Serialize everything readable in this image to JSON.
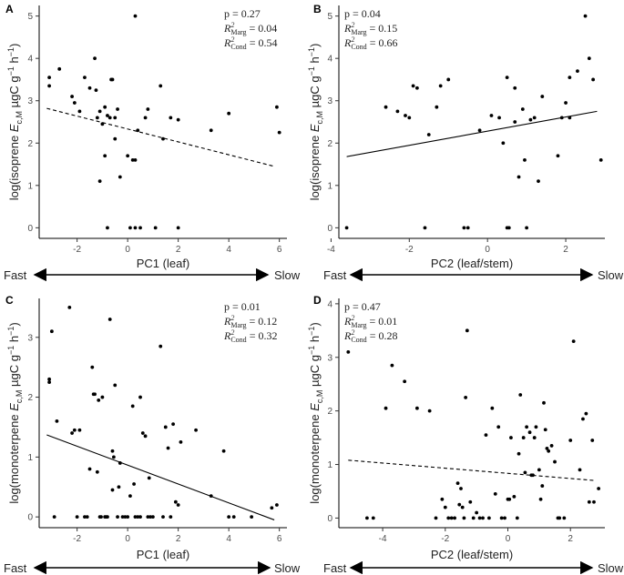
{
  "chart_data": [
    {
      "panel": "A",
      "type": "scatter",
      "xlabel": "PC1 (leaf)",
      "ylabel_prefix": "log(isoprene ",
      "ylabel_E": "E",
      "ylabel_sub": "c,M",
      "ylabel_unit": " µgC g",
      "ylabel_h": " h",
      "ylabel_exp": "−1",
      "ylabel_close": ")",
      "xlim": [
        -3.5,
        6.3
      ],
      "ylim": [
        -0.25,
        5.25
      ],
      "xticks": [
        -2,
        0,
        2,
        4,
        6
      ],
      "yticks": [
        0,
        1,
        2,
        3,
        4,
        5
      ],
      "stats": {
        "p": "p = 0.27",
        "r2marg_val": " = 0.04",
        "r2cond_val": " = 0.54",
        "R": "R",
        "two": "2",
        "marg": "Marg",
        "cond": "Cond"
      },
      "trend": {
        "style": "dashed",
        "x": [
          -3.2,
          5.8
        ],
        "y": [
          2.82,
          1.45
        ]
      },
      "gradient": {
        "left": "Fast",
        "right": "Slow"
      },
      "points": [
        [
          -3.1,
          3.55
        ],
        [
          -3.1,
          3.35
        ],
        [
          -2.7,
          3.75
        ],
        [
          -2.2,
          3.1
        ],
        [
          -2.1,
          2.95
        ],
        [
          -1.9,
          2.75
        ],
        [
          -1.7,
          3.55
        ],
        [
          -1.5,
          3.3
        ],
        [
          -1.3,
          4.0
        ],
        [
          -1.25,
          3.25
        ],
        [
          -1.2,
          2.6
        ],
        [
          -1.1,
          2.75
        ],
        [
          -1.1,
          1.1
        ],
        [
          -1.0,
          2.45
        ],
        [
          -0.9,
          2.85
        ],
        [
          -0.8,
          2.65
        ],
        [
          -0.7,
          2.6
        ],
        [
          -0.65,
          3.5
        ],
        [
          -0.6,
          3.5
        ],
        [
          -0.5,
          2.1
        ],
        [
          -0.4,
          2.8
        ],
        [
          -0.3,
          1.2
        ],
        [
          -0.5,
          2.6
        ],
        [
          -0.9,
          1.7
        ],
        [
          -0.8,
          0
        ],
        [
          0.0,
          1.7
        ],
        [
          0.1,
          0
        ],
        [
          0.2,
          1.6
        ],
        [
          0.3,
          1.6
        ],
        [
          0.3,
          5.0
        ],
        [
          0.4,
          2.3
        ],
        [
          0.3,
          0
        ],
        [
          0.5,
          0
        ],
        [
          0.7,
          2.6
        ],
        [
          0.8,
          2.8
        ],
        [
          1.1,
          0
        ],
        [
          1.3,
          3.35
        ],
        [
          1.4,
          2.1
        ],
        [
          1.7,
          2.6
        ],
        [
          2.0,
          2.55
        ],
        [
          2.0,
          0
        ],
        [
          3.3,
          2.3
        ],
        [
          4.0,
          2.7
        ],
        [
          5.9,
          2.85
        ],
        [
          6.0,
          2.25
        ]
      ]
    },
    {
      "panel": "B",
      "type": "scatter",
      "xlabel": "PC2 (leaf/stem)",
      "ylabel_prefix": "log(isoprene ",
      "ylabel_E": "E",
      "ylabel_sub": "c,M",
      "ylabel_unit": " µgC g",
      "ylabel_h": " h",
      "ylabel_exp": "−1",
      "ylabel_close": ")",
      "xlim": [
        -3.8,
        3.0
      ],
      "ylim": [
        -0.25,
        5.25
      ],
      "xticks": [
        -4,
        -2,
        0,
        2
      ],
      "yticks": [
        0,
        1,
        2,
        3,
        4,
        5
      ],
      "stats": {
        "p": "p = 0.04",
        "r2marg_val": " = 0.15",
        "r2cond_val": " = 0.66",
        "R": "R",
        "two": "2",
        "marg": "Marg",
        "cond": "Cond"
      },
      "trend": {
        "style": "solid",
        "x": [
          -3.6,
          2.8
        ],
        "y": [
          1.68,
          2.75
        ]
      },
      "gradient": {
        "left": "Fast",
        "right": "Slow"
      },
      "points": [
        [
          -3.6,
          0
        ],
        [
          -2.6,
          2.85
        ],
        [
          -2.3,
          2.75
        ],
        [
          -2.1,
          2.65
        ],
        [
          -2.0,
          2.6
        ],
        [
          -1.9,
          3.35
        ],
        [
          -1.8,
          3.3
        ],
        [
          -1.6,
          0
        ],
        [
          -1.5,
          2.2
        ],
        [
          -1.3,
          2.85
        ],
        [
          -1.2,
          3.35
        ],
        [
          -1.0,
          3.5
        ],
        [
          -0.6,
          0
        ],
        [
          -0.5,
          0
        ],
        [
          -0.2,
          2.3
        ],
        [
          0.1,
          2.65
        ],
        [
          0.3,
          2.6
        ],
        [
          0.4,
          2.0
        ],
        [
          0.5,
          3.55
        ],
        [
          0.5,
          0
        ],
        [
          0.55,
          0
        ],
        [
          0.7,
          3.3
        ],
        [
          0.7,
          2.5
        ],
        [
          0.8,
          1.2
        ],
        [
          0.9,
          2.8
        ],
        [
          0.95,
          1.6
        ],
        [
          1.0,
          0
        ],
        [
          1.1,
          2.55
        ],
        [
          1.2,
          2.6
        ],
        [
          1.3,
          1.1
        ],
        [
          1.4,
          3.1
        ],
        [
          1.8,
          1.7
        ],
        [
          1.9,
          2.6
        ],
        [
          2.0,
          2.95
        ],
        [
          2.1,
          3.55
        ],
        [
          2.1,
          2.6
        ],
        [
          2.3,
          3.7
        ],
        [
          2.5,
          5.0
        ],
        [
          2.6,
          4.0
        ],
        [
          2.7,
          3.5
        ],
        [
          2.9,
          1.6
        ]
      ]
    },
    {
      "panel": "C",
      "type": "scatter",
      "xlabel": "PC1 (leaf)",
      "ylabel_prefix": "log(monoterpene ",
      "ylabel_E": "E",
      "ylabel_sub": "c,M",
      "ylabel_unit": " µgC g",
      "ylabel_h": " h",
      "ylabel_exp": "−1",
      "ylabel_close": ")",
      "xlim": [
        -3.5,
        6.3
      ],
      "ylim": [
        -0.18,
        3.65
      ],
      "xticks": [
        -2,
        0,
        2,
        4,
        6
      ],
      "yticks": [
        0,
        1,
        2,
        3
      ],
      "stats": {
        "p": "p = 0.01",
        "r2marg_val": " = 0.12",
        "r2cond_val": " = 0.32",
        "R": "R",
        "two": "2",
        "marg": "Marg",
        "cond": "Cond"
      },
      "trend": {
        "style": "solid",
        "x": [
          -3.2,
          5.8
        ],
        "y": [
          1.37,
          -0.05
        ]
      },
      "gradient": {
        "left": "Fast",
        "right": "Slow"
      },
      "points": [
        [
          -3.1,
          2.3
        ],
        [
          -3.1,
          2.25
        ],
        [
          -3.0,
          3.1
        ],
        [
          -2.9,
          0
        ],
        [
          -2.8,
          1.6
        ],
        [
          -2.3,
          3.5
        ],
        [
          -2.2,
          1.4
        ],
        [
          -2.1,
          1.45
        ],
        [
          -2.0,
          0
        ],
        [
          -1.9,
          1.45
        ],
        [
          -1.7,
          0
        ],
        [
          -1.6,
          0
        ],
        [
          -1.5,
          0.8
        ],
        [
          -1.4,
          2.5
        ],
        [
          -1.35,
          2.05
        ],
        [
          -1.3,
          2.05
        ],
        [
          -1.2,
          0.75
        ],
        [
          -1.15,
          1.95
        ],
        [
          -1.1,
          0
        ],
        [
          -1.05,
          0
        ],
        [
          -1.0,
          2.0
        ],
        [
          -0.9,
          0
        ],
        [
          -0.85,
          0
        ],
        [
          -0.8,
          0
        ],
        [
          -0.7,
          3.3
        ],
        [
          -0.6,
          1.1
        ],
        [
          -0.55,
          1.0
        ],
        [
          -0.6,
          0.45
        ],
        [
          -0.5,
          2.2
        ],
        [
          -0.4,
          0
        ],
        [
          -0.35,
          0.5
        ],
        [
          -0.3,
          0.9
        ],
        [
          -0.2,
          0
        ],
        [
          -0.1,
          0
        ],
        [
          0.0,
          0
        ],
        [
          0.1,
          0.35
        ],
        [
          0.2,
          1.85
        ],
        [
          0.25,
          0.55
        ],
        [
          0.3,
          0
        ],
        [
          0.4,
          0
        ],
        [
          0.5,
          2.0
        ],
        [
          0.5,
          0
        ],
        [
          0.6,
          1.4
        ],
        [
          0.7,
          1.35
        ],
        [
          0.8,
          0
        ],
        [
          0.85,
          0.65
        ],
        [
          0.9,
          0
        ],
        [
          1.0,
          0
        ],
        [
          1.3,
          2.85
        ],
        [
          1.4,
          0
        ],
        [
          1.5,
          1.5
        ],
        [
          1.6,
          1.15
        ],
        [
          1.7,
          0
        ],
        [
          1.8,
          1.55
        ],
        [
          1.9,
          0.25
        ],
        [
          2.0,
          0.2
        ],
        [
          2.1,
          1.25
        ],
        [
          2.7,
          1.45
        ],
        [
          3.3,
          0.35
        ],
        [
          3.8,
          1.1
        ],
        [
          4.0,
          0
        ],
        [
          4.2,
          0
        ],
        [
          4.9,
          0
        ],
        [
          5.7,
          0.15
        ],
        [
          5.9,
          0.2
        ]
      ]
    },
    {
      "panel": "D",
      "type": "scatter",
      "xlabel": "PC2 (leaf/stem)",
      "ylabel_prefix": "log(monoterpene ",
      "ylabel_E": "E",
      "ylabel_sub": "c,M",
      "ylabel_unit": " µgC g",
      "ylabel_h": " h",
      "ylabel_exp": "−1",
      "ylabel_close": ")",
      "xlim": [
        -5.4,
        3.1
      ],
      "ylim": [
        -0.18,
        4.1
      ],
      "xticks": [
        -4,
        -2,
        0,
        2
      ],
      "yticks": [
        0,
        1,
        2,
        3,
        4
      ],
      "stats": {
        "p": "p = 0.47",
        "r2marg_val": " = 0.01",
        "r2cond_val": " = 0.28",
        "R": "R",
        "two": "2",
        "marg": "Marg",
        "cond": "Cond"
      },
      "trend": {
        "style": "dashed",
        "x": [
          -5.1,
          2.8
        ],
        "y": [
          1.08,
          0.7
        ]
      },
      "gradient": {
        "left": "Fast",
        "right": "Slow"
      },
      "points": [
        [
          -5.1,
          3.1
        ],
        [
          -4.5,
          0
        ],
        [
          -4.3,
          0
        ],
        [
          -3.9,
          2.05
        ],
        [
          -3.7,
          2.85
        ],
        [
          -3.3,
          2.55
        ],
        [
          -2.9,
          2.05
        ],
        [
          -2.5,
          2.0
        ],
        [
          -2.3,
          0
        ],
        [
          -2.1,
          0.35
        ],
        [
          -2.0,
          0.2
        ],
        [
          -1.9,
          0
        ],
        [
          -1.8,
          0
        ],
        [
          -1.7,
          0
        ],
        [
          -1.6,
          0.65
        ],
        [
          -1.55,
          0.25
        ],
        [
          -1.5,
          0.55
        ],
        [
          -1.45,
          0.2
        ],
        [
          -1.4,
          0
        ],
        [
          -1.35,
          2.25
        ],
        [
          -1.3,
          3.5
        ],
        [
          -1.2,
          0.3
        ],
        [
          -1.1,
          0
        ],
        [
          -1.0,
          0.1
        ],
        [
          -0.9,
          0
        ],
        [
          -0.8,
          0
        ],
        [
          -0.7,
          1.55
        ],
        [
          -0.6,
          0
        ],
        [
          -0.5,
          2.05
        ],
        [
          -0.4,
          0.45
        ],
        [
          -0.3,
          1.7
        ],
        [
          -0.2,
          0
        ],
        [
          -0.1,
          0
        ],
        [
          0.0,
          0.35
        ],
        [
          0.05,
          0.35
        ],
        [
          0.1,
          1.5
        ],
        [
          0.2,
          0.4
        ],
        [
          0.3,
          0
        ],
        [
          0.35,
          1.2
        ],
        [
          0.4,
          2.3
        ],
        [
          0.5,
          1.5
        ],
        [
          0.55,
          0.85
        ],
        [
          0.6,
          1.7
        ],
        [
          0.7,
          1.6
        ],
        [
          0.75,
          0.8
        ],
        [
          0.8,
          0.8
        ],
        [
          0.85,
          1.5
        ],
        [
          0.9,
          1.7
        ],
        [
          1.0,
          0.9
        ],
        [
          1.05,
          0.35
        ],
        [
          1.1,
          0.6
        ],
        [
          1.15,
          2.15
        ],
        [
          1.2,
          1.65
        ],
        [
          1.25,
          1.3
        ],
        [
          1.3,
          1.25
        ],
        [
          1.4,
          1.35
        ],
        [
          1.5,
          1.05
        ],
        [
          1.6,
          0
        ],
        [
          1.65,
          0
        ],
        [
          1.8,
          0
        ],
        [
          2.0,
          1.45
        ],
        [
          2.1,
          3.3
        ],
        [
          2.3,
          0.9
        ],
        [
          2.4,
          1.85
        ],
        [
          2.5,
          1.95
        ],
        [
          2.6,
          0.3
        ],
        [
          2.7,
          1.45
        ],
        [
          2.75,
          0.3
        ],
        [
          2.9,
          0.55
        ]
      ]
    }
  ]
}
